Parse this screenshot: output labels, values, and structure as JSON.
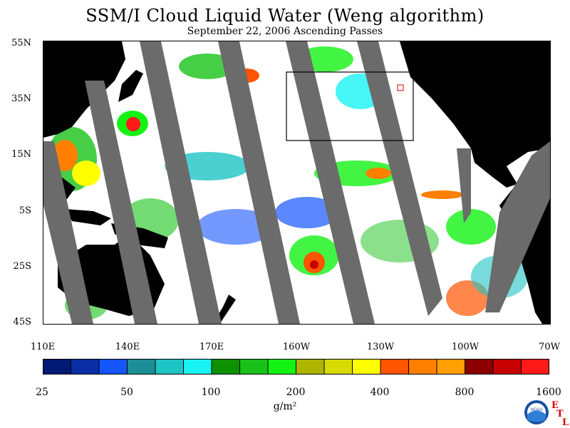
{
  "header": {
    "title": "SSM/I Cloud Liquid Water (Weng algorithm)",
    "subtitle": "September 22, 2006  Ascending Passes"
  },
  "axes": {
    "lat_labels": [
      "55N",
      "35N",
      "15N",
      "5S",
      "25S",
      "45S"
    ],
    "lon_labels": [
      "110E",
      "140E",
      "170E",
      "160W",
      "130W",
      "100W",
      "70W"
    ]
  },
  "colorbar": {
    "colors": [
      "#001a73",
      "#0a2ea6",
      "#1555ff",
      "#1b8f93",
      "#1ec3c3",
      "#18f2f2",
      "#0d9100",
      "#18c218",
      "#13f213",
      "#aeb400",
      "#d8db00",
      "#ffff00",
      "#ff5400",
      "#ff7f00",
      "#ff9f00",
      "#8a0000",
      "#c80000",
      "#ff1a1a"
    ],
    "labels": [
      "25",
      "50",
      "100",
      "200",
      "400",
      "800",
      "1600"
    ],
    "units": "g/m²"
  },
  "map": {
    "land_color": "#000000",
    "no_data_color": "#6b6b6b",
    "ocean_clear_color": "#ffffff"
  },
  "logo": {
    "agency_text": "NOAA",
    "lab_letters": [
      "E",
      "T",
      "L"
    ]
  }
}
